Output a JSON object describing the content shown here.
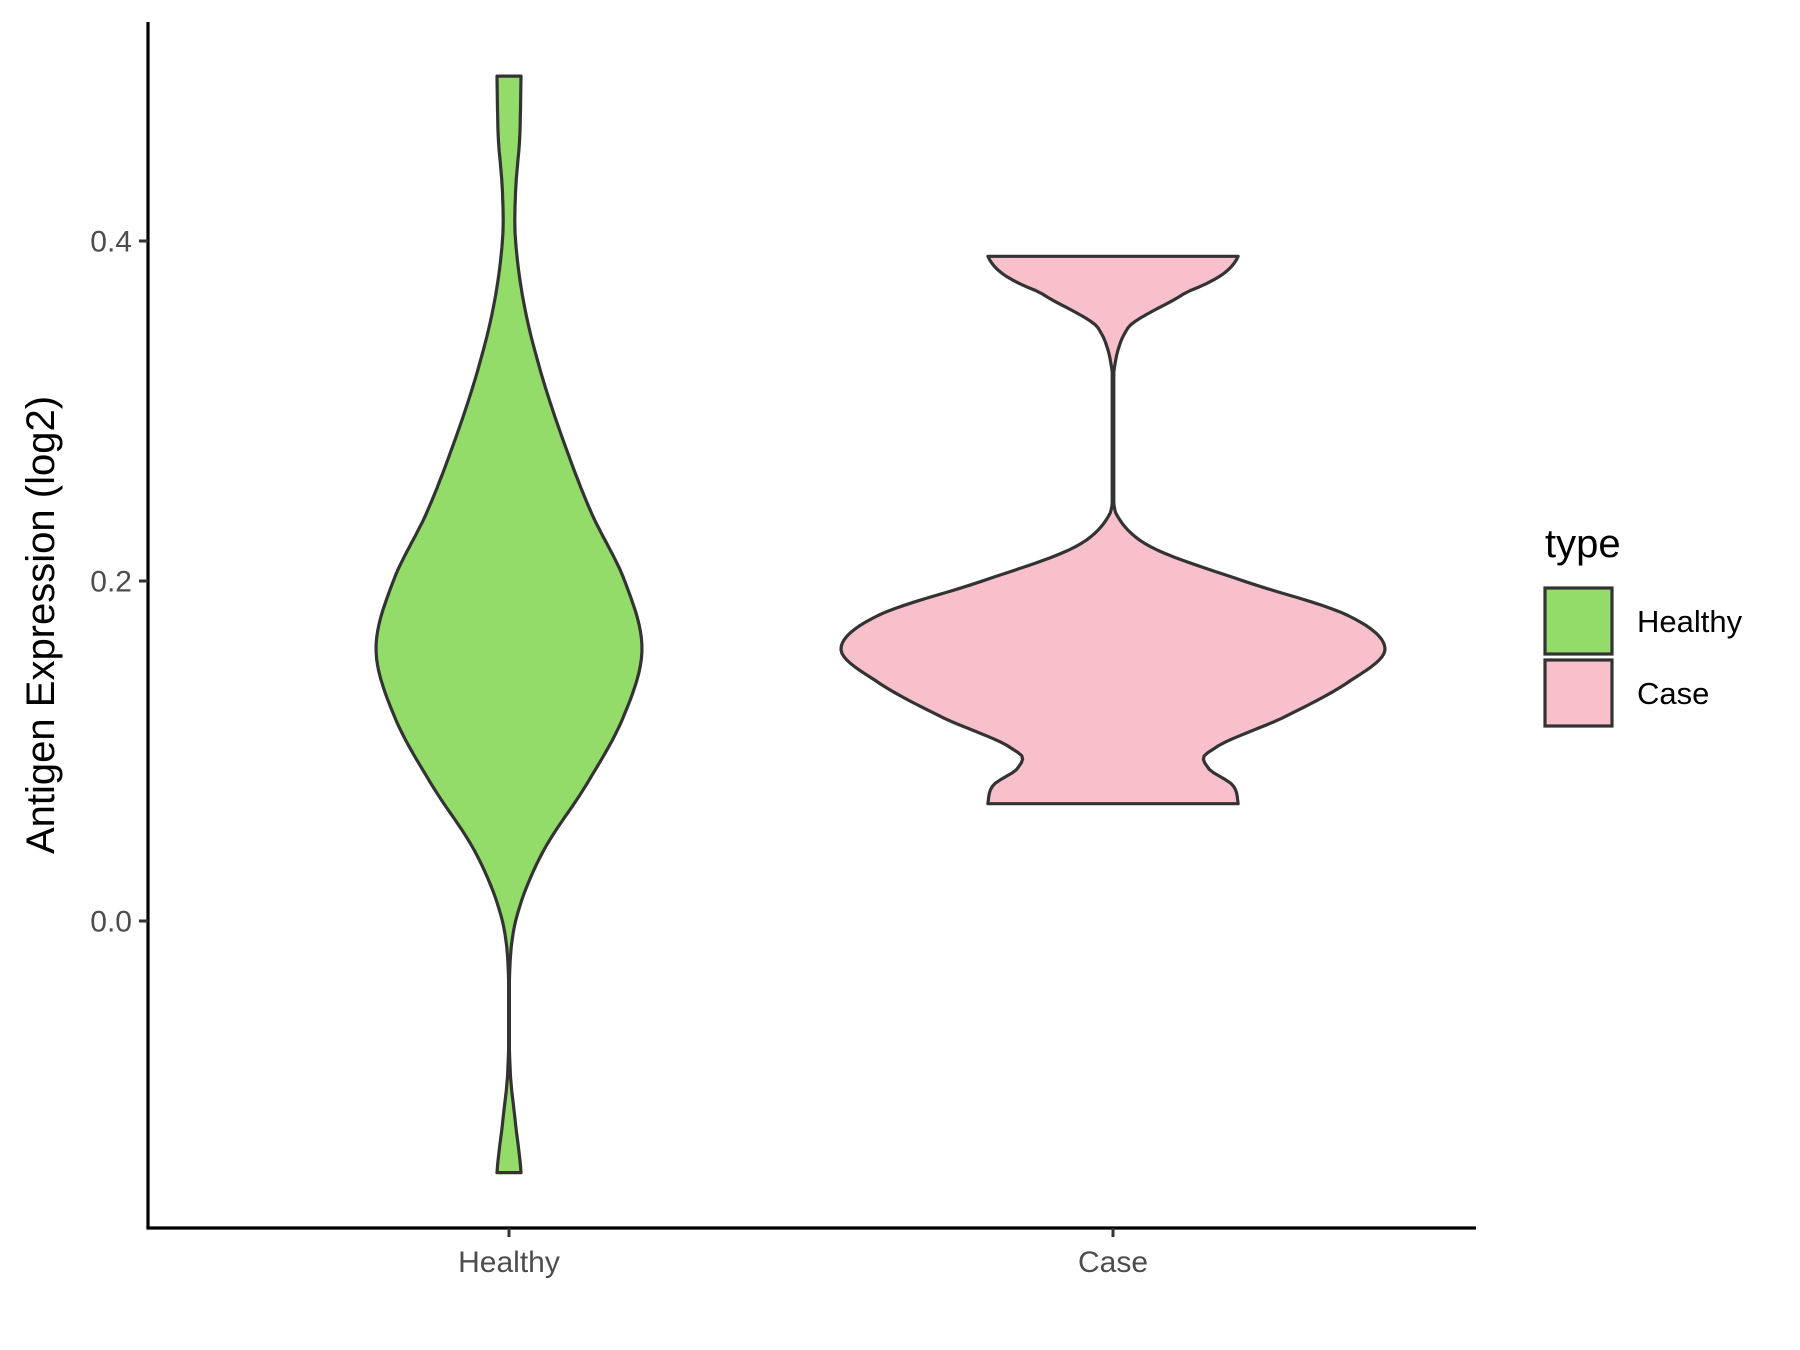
{
  "chart_data": {
    "type": "violin",
    "title": "",
    "xlabel": "",
    "ylabel": "Antigen Expression (log2)",
    "categories": [
      "Healthy",
      "Case"
    ],
    "ylim": [
      -0.18,
      0.53
    ],
    "yticks": [
      0.0,
      0.2,
      0.4
    ],
    "ytick_labels": [
      "0.0",
      "0.2",
      "0.4"
    ],
    "grid": false,
    "legend": {
      "title": "type",
      "position": "right",
      "entries": [
        {
          "label": "Healthy",
          "color": "#93DC6A"
        },
        {
          "label": "Case",
          "color": "#F7C0CB"
        }
      ]
    },
    "series": [
      {
        "category": "Healthy",
        "color": "#93DC6A",
        "min": -0.148,
        "max": 0.497,
        "density_profile": [
          [
            -0.148,
            0.09
          ],
          [
            -0.12,
            0.05
          ],
          [
            -0.09,
            0.01
          ],
          [
            -0.04,
            0.0
          ],
          [
            0.0,
            0.05
          ],
          [
            0.04,
            0.25
          ],
          [
            0.08,
            0.58
          ],
          [
            0.12,
            0.86
          ],
          [
            0.16,
            1.0
          ],
          [
            0.2,
            0.87
          ],
          [
            0.24,
            0.62
          ],
          [
            0.28,
            0.42
          ],
          [
            0.32,
            0.25
          ],
          [
            0.36,
            0.12
          ],
          [
            0.4,
            0.05
          ],
          [
            0.43,
            0.05
          ],
          [
            0.46,
            0.08
          ],
          [
            0.497,
            0.09
          ]
        ]
      },
      {
        "category": "Case",
        "color": "#F7C0CB",
        "min": 0.069,
        "max": 0.391,
        "density_profile": [
          [
            0.069,
            0.46
          ],
          [
            0.08,
            0.44
          ],
          [
            0.09,
            0.35
          ],
          [
            0.1,
            0.36
          ],
          [
            0.12,
            0.63
          ],
          [
            0.14,
            0.86
          ],
          [
            0.16,
            1.0
          ],
          [
            0.18,
            0.86
          ],
          [
            0.2,
            0.48
          ],
          [
            0.22,
            0.14
          ],
          [
            0.24,
            0.01
          ],
          [
            0.28,
            0.0
          ],
          [
            0.32,
            0.0
          ],
          [
            0.35,
            0.06
          ],
          [
            0.37,
            0.27
          ],
          [
            0.38,
            0.4
          ],
          [
            0.391,
            0.46
          ]
        ]
      }
    ]
  }
}
